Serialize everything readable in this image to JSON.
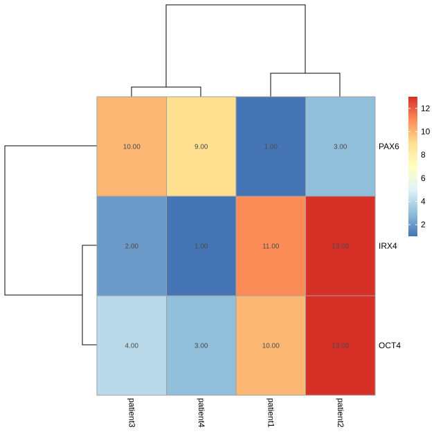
{
  "chart_data": {
    "type": "heatmap",
    "rows": [
      "PAX6",
      "IRX4",
      "OCT4"
    ],
    "columns": [
      "patient3",
      "patient4",
      "patient1",
      "patient2"
    ],
    "values": [
      [
        10,
        9,
        1,
        3
      ],
      [
        2,
        1,
        11,
        13
      ],
      [
        4,
        3,
        10,
        13
      ]
    ],
    "value_labels": [
      [
        "10.00",
        "9.00",
        "1.00",
        "3.00"
      ],
      [
        "2.00",
        "1.00",
        "11.00",
        "13.00"
      ],
      [
        "4.00",
        "3.00",
        "10.00",
        "13.00"
      ]
    ],
    "color_scale": {
      "min": 1,
      "max": 13,
      "stops": [
        "#4575b4",
        "#91bfdb",
        "#e0f3f8",
        "#ffffbf",
        "#fee090",
        "#fc8d59",
        "#d73027"
      ],
      "legend_ticks": [
        "2",
        "4",
        "6",
        "8",
        "10",
        "12"
      ],
      "legend_tick_values": [
        2,
        4,
        6,
        8,
        10,
        12
      ]
    },
    "row_dendrogram": true,
    "column_dendrogram": true,
    "grid_color": "#a0a0a0"
  }
}
